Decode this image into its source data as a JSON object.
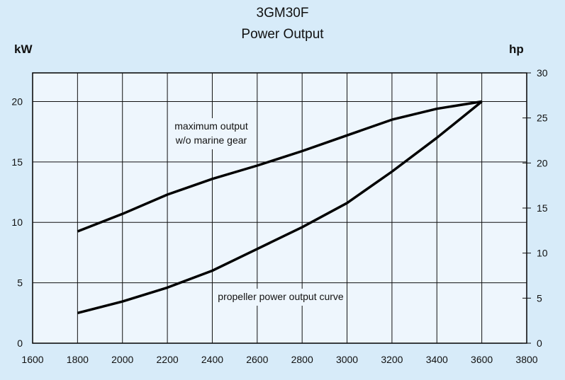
{
  "chart_data": {
    "type": "line",
    "title": "3GM30F",
    "subtitle": "Power Output",
    "ylabel": "kW",
    "y2label": "hp",
    "xlim": [
      1600,
      3800
    ],
    "ylim": [
      0,
      22.37
    ],
    "y2lim": [
      0,
      30
    ],
    "grid": true,
    "xticks": [
      1600,
      1800,
      2000,
      2200,
      2400,
      2600,
      2800,
      3000,
      3200,
      3400,
      3600,
      3800
    ],
    "yticks": [
      0,
      5,
      10,
      15,
      20
    ],
    "y2ticks": [
      0,
      5,
      10,
      15,
      20,
      25,
      30
    ],
    "x": [
      1800,
      2000,
      2200,
      2400,
      2600,
      2800,
      3000,
      3200,
      3400,
      3600
    ],
    "series": [
      {
        "name": "maximum output w/o marine gear",
        "label_lines": [
          "maximum output",
          "w/o marine gear"
        ],
        "values": [
          9.25,
          10.7,
          12.3,
          13.6,
          14.7,
          15.9,
          17.2,
          18.5,
          19.4,
          20.0
        ]
      },
      {
        "name": "propeller power output curve",
        "label_lines": [
          "propeller power output curve"
        ],
        "values": [
          2.5,
          3.45,
          4.6,
          6.0,
          7.8,
          9.6,
          11.6,
          14.2,
          17.0,
          20.0
        ]
      }
    ]
  },
  "colors": {
    "background": "#d7ebf9",
    "plot": "#eef6fd",
    "line": "#000000"
  }
}
